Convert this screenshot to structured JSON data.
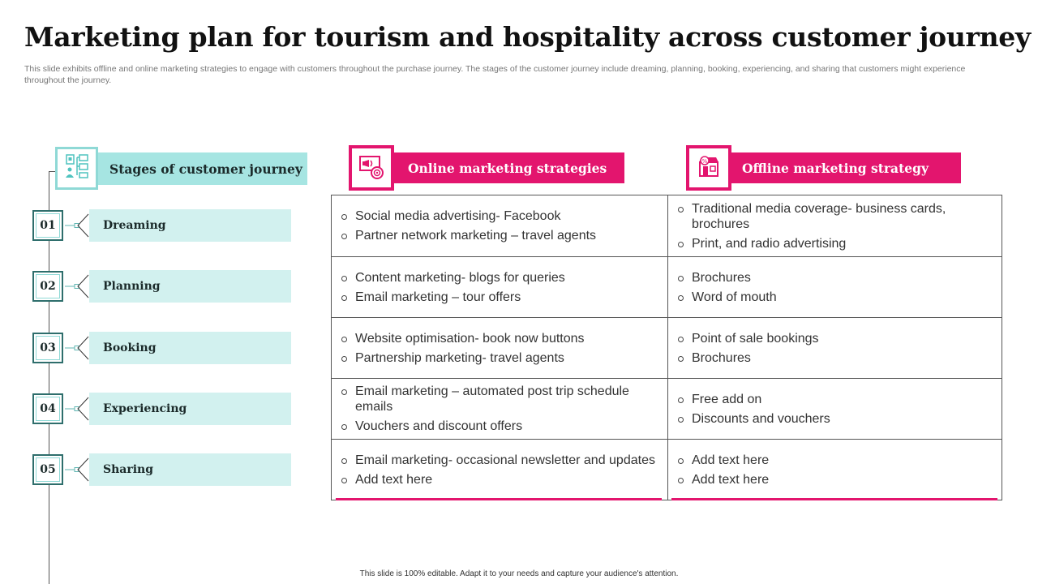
{
  "title": "Marketing plan for tourism and hospitality across customer journey",
  "subtitle": "This slide exhibits offline and online marketing strategies to engage with customers throughout the purchase journey. The stages of the customer journey include dreaming, planning, booking, experiencing, and sharing that customers might experience throughout the journey.",
  "stages_header": {
    "label": "Stages of customer journey",
    "icon": "people-network-icon"
  },
  "stages": [
    {
      "number": "01",
      "label": "Dreaming"
    },
    {
      "number": "02",
      "label": "Planning"
    },
    {
      "number": "03",
      "label": "Booking"
    },
    {
      "number": "04",
      "label": "Experiencing"
    },
    {
      "number": "05",
      "label": "Sharing"
    }
  ],
  "columns": {
    "online": {
      "label": "Online marketing strategies",
      "icon": "megaphone-target-icon"
    },
    "offline": {
      "label": "Offline marketing strategy",
      "icon": "storefront-icon"
    }
  },
  "rows": [
    {
      "online": [
        "Social media advertising- Facebook",
        "Partner network marketing – travel agents"
      ],
      "offline": [
        "Traditional media coverage- business cards, brochures",
        "Print, and radio advertising"
      ]
    },
    {
      "online": [
        "Content marketing- blogs for queries",
        "Email marketing – tour offers"
      ],
      "offline": [
        "Brochures",
        "Word of mouth"
      ]
    },
    {
      "online": [
        "Website optimisation- book now buttons",
        "Partnership marketing- travel agents"
      ],
      "offline": [
        "Point of sale bookings",
        "Brochures"
      ]
    },
    {
      "online": [
        "Email marketing – automated post trip schedule emails",
        "Vouchers and discount offers"
      ],
      "offline": [
        "Free add on",
        "Discounts and vouchers"
      ]
    },
    {
      "online": [
        "Email marketing- occasional newsletter and updates",
        "Add text here"
      ],
      "offline": [
        "Add text here",
        "Add text here"
      ]
    }
  ],
  "footer": "This slide is 100% editable. Adapt it to your needs and capture your audience's attention.",
  "colors": {
    "accent_pink": "#e3156e",
    "teal_dark": "#2e6e6c",
    "teal_header": "#a6e5e2",
    "teal_light": "#d2f1ef"
  }
}
